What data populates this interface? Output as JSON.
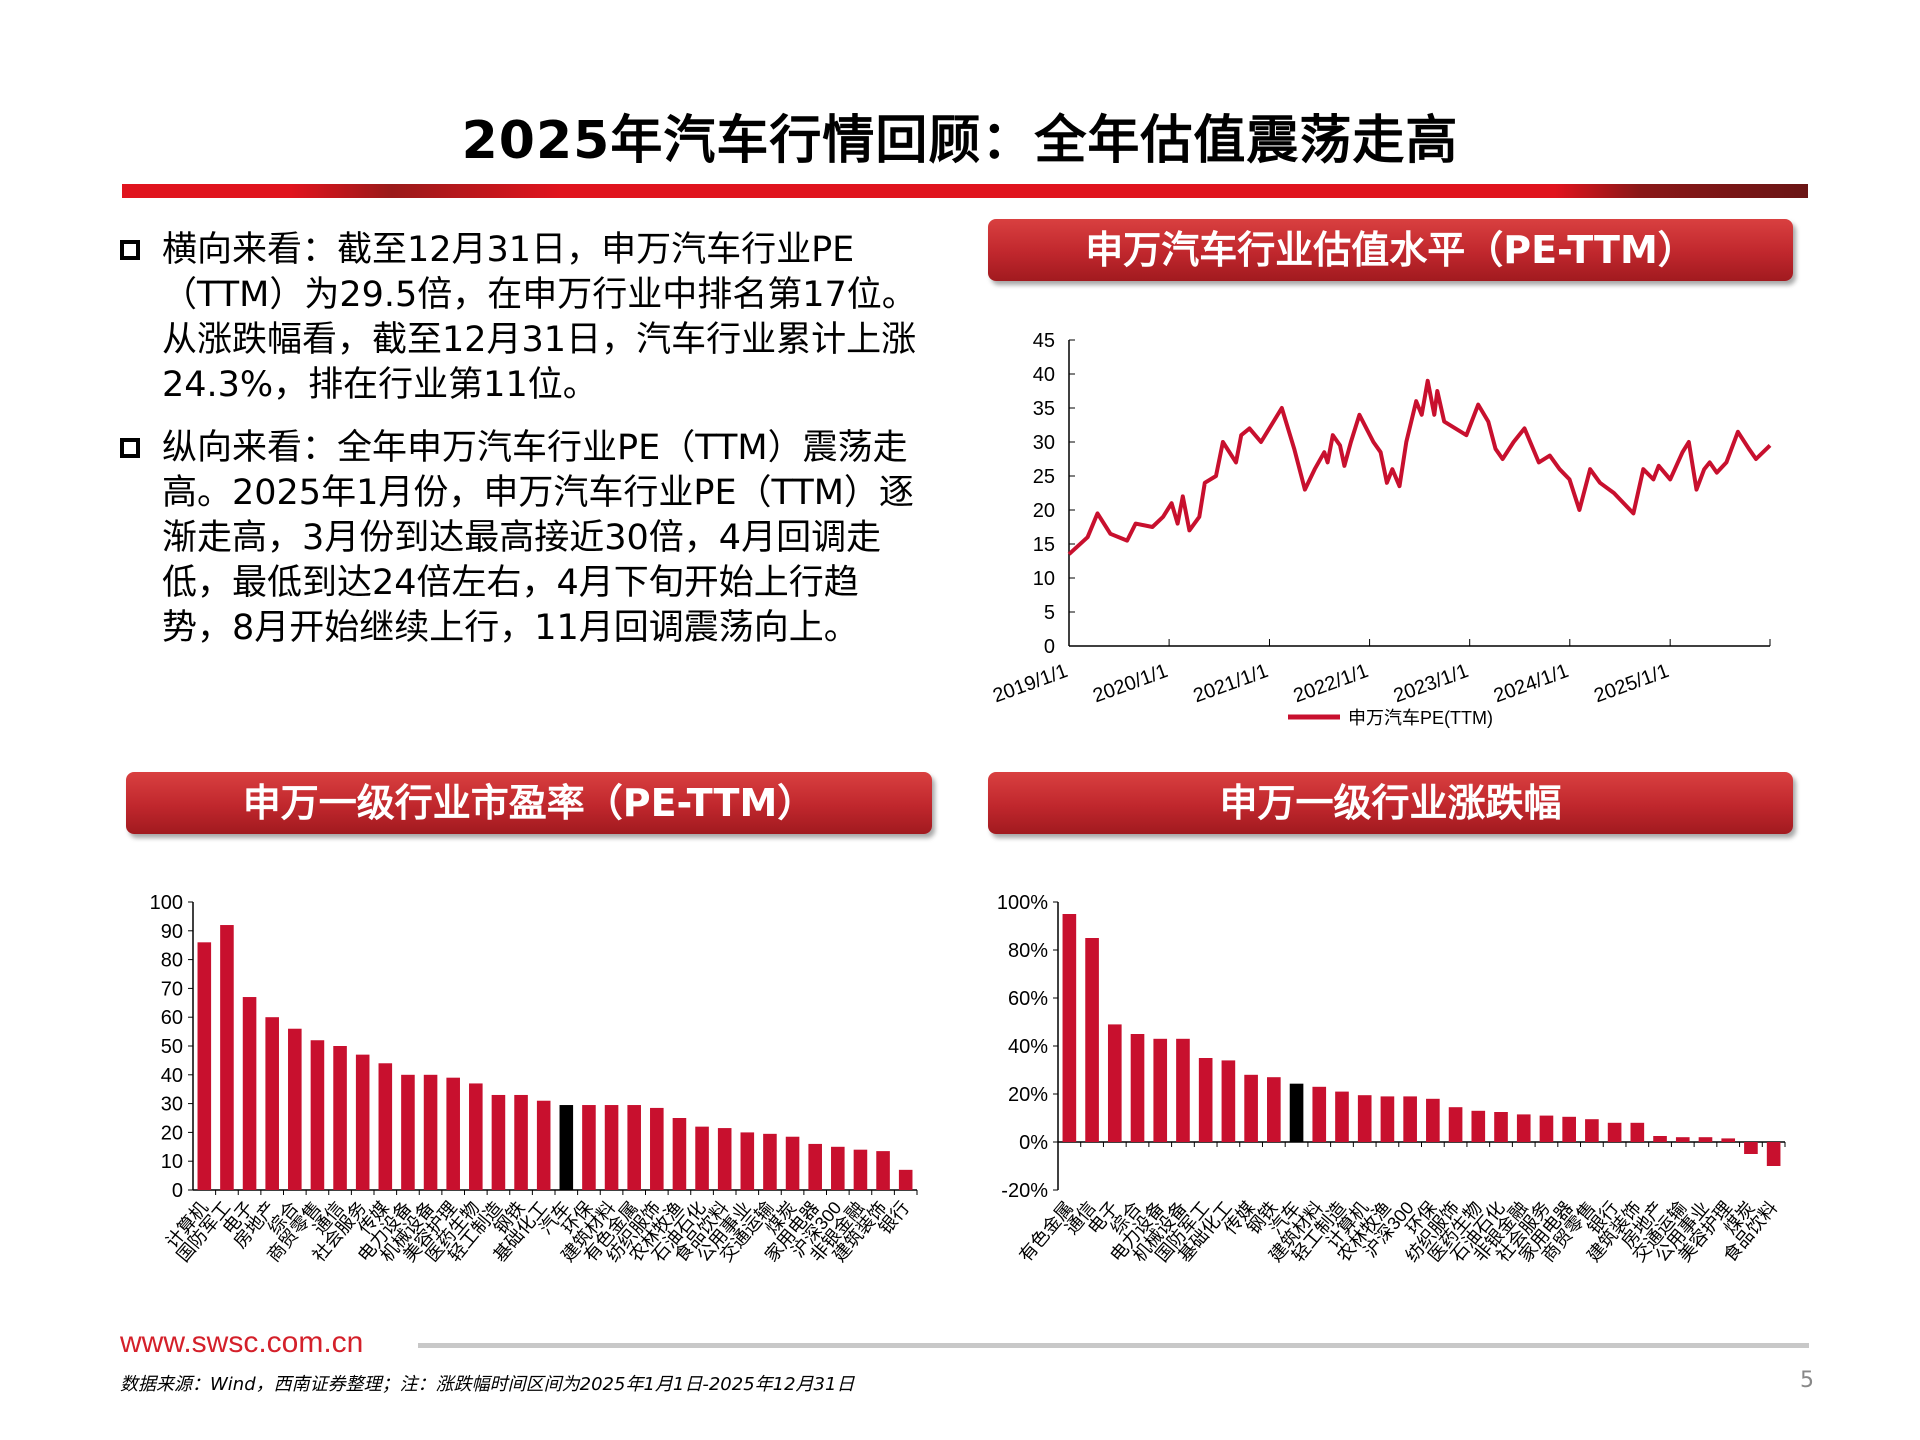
{
  "title": "2025年汽车行情回顾：全年估值震荡走高",
  "bullets": [
    "横向来看：截至12月31日，申万汽车行业PE（TTM）为29.5倍，在申万行业中排名第17位。从涨跌幅看，截至12月31日，汽车行业累计上涨24.3%，排在行业第11位。",
    "纵向来看：全年申万汽车行业PE（TTM）震荡走高。2025年1月份，申万汽车行业PE（TTM）逐渐走高，3月份到达最高接近30倍，4月回调走低，最低到达24倍左右，4月下旬开始上行趋势，8月开始继续上行，11月回调震荡向上。"
  ],
  "sections": {
    "top_right": "申万汽车行业估值水平（PE-TTM）",
    "bottom_left": "申万一级行业市盈率（PE-TTM）",
    "bottom_right": "申万一级行业涨跌幅"
  },
  "colors": {
    "accent": "#c8102e",
    "highlight": "#000000"
  },
  "chart_data": [
    {
      "type": "line",
      "ylim": [
        0,
        45
      ],
      "yticks": [
        0,
        5,
        10,
        15,
        20,
        25,
        30,
        35,
        40,
        45
      ],
      "xticks": [
        "2019/1/1",
        "2020/1/1",
        "2021/1/1",
        "2022/1/1",
        "2023/1/1",
        "2024/1/1",
        "2025/1/1"
      ],
      "xlim": [
        "2019-01-01",
        "2025-12-31"
      ],
      "grid": false,
      "legend": "bottom",
      "series": [
        {
          "name": "申万汽车PE(TTM)",
          "points": [
            [
              "2019-01-01",
              13.5
            ],
            [
              "2019-03-10",
              16
            ],
            [
              "2019-04-15",
              19.5
            ],
            [
              "2019-06-01",
              16.5
            ],
            [
              "2019-08-01",
              15.5
            ],
            [
              "2019-09-01",
              18
            ],
            [
              "2019-11-01",
              17.5
            ],
            [
              "2019-12-10",
              19
            ],
            [
              "2020-01-10",
              21
            ],
            [
              "2020-02-01",
              18
            ],
            [
              "2020-02-20",
              22
            ],
            [
              "2020-03-15",
              17
            ],
            [
              "2020-04-20",
              19
            ],
            [
              "2020-05-10",
              24
            ],
            [
              "2020-06-20",
              25
            ],
            [
              "2020-07-15",
              30
            ],
            [
              "2020-09-01",
              27
            ],
            [
              "2020-09-20",
              31
            ],
            [
              "2020-10-20",
              32
            ],
            [
              "2020-12-01",
              30
            ],
            [
              "2021-02-15",
              35
            ],
            [
              "2021-04-01",
              29
            ],
            [
              "2021-05-10",
              23
            ],
            [
              "2021-06-15",
              26
            ],
            [
              "2021-07-20",
              28.5
            ],
            [
              "2021-08-01",
              27
            ],
            [
              "2021-08-20",
              31
            ],
            [
              "2021-09-15",
              29.5
            ],
            [
              "2021-10-01",
              26.5
            ],
            [
              "2021-10-25",
              30
            ],
            [
              "2021-11-25",
              34
            ],
            [
              "2022-01-15",
              30
            ],
            [
              "2022-02-10",
              28.5
            ],
            [
              "2022-03-05",
              24
            ],
            [
              "2022-03-25",
              26
            ],
            [
              "2022-04-20",
              23.5
            ],
            [
              "2022-05-15",
              30
            ],
            [
              "2022-06-20",
              36
            ],
            [
              "2022-07-10",
              34
            ],
            [
              "2022-08-01",
              39
            ],
            [
              "2022-08-25",
              34
            ],
            [
              "2022-09-05",
              37.5
            ],
            [
              "2022-09-30",
              33
            ],
            [
              "2022-11-10",
              32
            ],
            [
              "2022-12-20",
              31
            ],
            [
              "2023-02-01",
              35.5
            ],
            [
              "2023-03-10",
              33
            ],
            [
              "2023-04-05",
              29
            ],
            [
              "2023-05-01",
              27.5
            ],
            [
              "2023-06-10",
              30
            ],
            [
              "2023-07-20",
              32
            ],
            [
              "2023-09-10",
              27
            ],
            [
              "2023-10-20",
              28
            ],
            [
              "2023-11-25",
              26
            ],
            [
              "2023-12-31",
              24.5
            ],
            [
              "2024-02-05",
              20
            ],
            [
              "2024-03-15",
              26
            ],
            [
              "2024-04-20",
              24
            ],
            [
              "2024-06-10",
              22.5
            ],
            [
              "2024-08-20",
              19.5
            ],
            [
              "2024-09-25",
              26
            ],
            [
              "2024-11-01",
              24.5
            ],
            [
              "2024-11-20",
              26.5
            ],
            [
              "2025-01-01",
              24.5
            ],
            [
              "2025-02-15",
              28.5
            ],
            [
              "2025-03-10",
              30
            ],
            [
              "2025-04-07",
              23
            ],
            [
              "2025-05-05",
              26
            ],
            [
              "2025-05-25",
              27
            ],
            [
              "2025-06-20",
              25.5
            ],
            [
              "2025-07-25",
              27
            ],
            [
              "2025-09-05",
              31.5
            ],
            [
              "2025-10-15",
              29
            ],
            [
              "2025-11-10",
              27.5
            ],
            [
              "2025-12-31",
              29.5
            ]
          ]
        }
      ]
    },
    {
      "type": "bar",
      "ylim": [
        0,
        100
      ],
      "yticks": [
        0,
        10,
        20,
        30,
        40,
        50,
        60,
        70,
        80,
        90,
        100
      ],
      "highlight": "汽车",
      "categories": [
        "计算机",
        "国防军工",
        "电子",
        "房地产",
        "综合",
        "商贸零售",
        "通信",
        "社会服务",
        "传媒",
        "电力设备",
        "机械设备",
        "美容护理",
        "医药生物",
        "轻工制造",
        "钢铁",
        "基础化工",
        "汽车",
        "环保",
        "建筑材料",
        "有色金属",
        "纺织服饰",
        "农林牧渔",
        "石油石化",
        "食品饮料",
        "公用事业",
        "交通运输",
        "煤炭",
        "家用电器",
        "沪深300",
        "非银金融",
        "建筑装饰",
        "银行"
      ],
      "values": [
        86,
        92,
        67,
        60,
        56,
        52,
        50,
        47,
        44,
        40,
        40,
        39,
        37,
        33,
        33,
        31,
        29.5,
        29.5,
        29.5,
        29.5,
        28.5,
        25,
        22,
        21.5,
        20,
        19.5,
        18.5,
        16,
        15,
        14,
        13.5,
        7
      ]
    },
    {
      "type": "bar",
      "ylim": [
        -20,
        100
      ],
      "yticks": [
        "-20%",
        "0%",
        "20%",
        "40%",
        "60%",
        "80%",
        "100%"
      ],
      "highlight": "汽车",
      "categories": [
        "有色金属",
        "通信",
        "电子",
        "综合",
        "电力设备",
        "机械设备",
        "国防军工",
        "基础化工",
        "传媒",
        "钢铁",
        "汽车",
        "建筑材料",
        "轻工制造",
        "计算机",
        "农林牧渔",
        "沪深300",
        "环保",
        "纺织服饰",
        "医药生物",
        "石油石化",
        "非银金融",
        "社会服务",
        "家用电器",
        "商贸零售",
        "银行",
        "建筑装饰",
        "房地产",
        "交通运输",
        "公用事业",
        "美容护理",
        "煤炭",
        "食品饮料"
      ],
      "values": [
        95,
        85,
        49,
        45,
        43,
        43,
        35,
        34,
        28,
        27,
        24.3,
        23,
        21,
        19.5,
        19,
        19,
        18,
        14.5,
        13,
        12.5,
        11.5,
        11,
        10.5,
        9.5,
        8,
        8,
        2.5,
        2,
        2,
        1.5,
        -5,
        -10
      ]
    }
  ],
  "footer": {
    "url": "www.swsc.com.cn",
    "source": "数据来源：Wind，西南证券整理；注：涨跌幅时间区间为2025年1月1日-2025年12月31日",
    "page": "5"
  }
}
